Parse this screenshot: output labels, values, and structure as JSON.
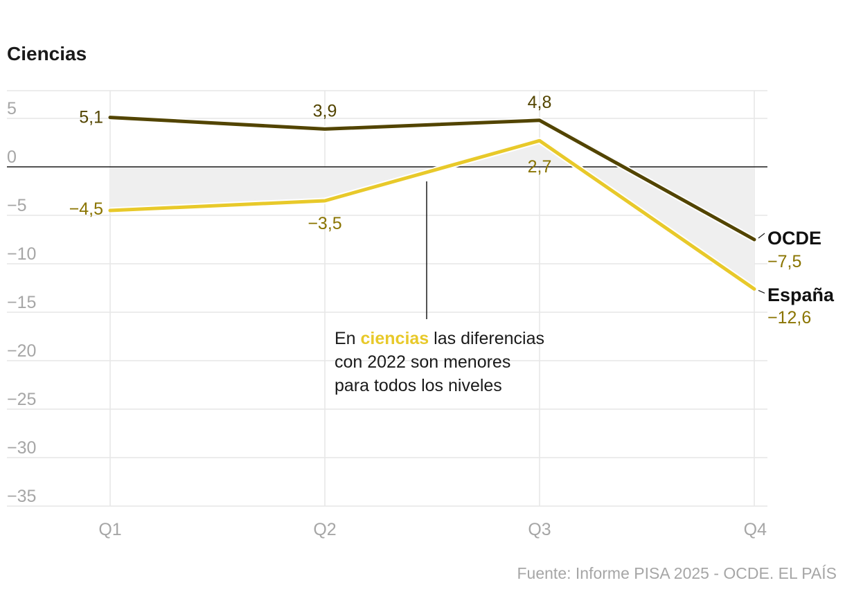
{
  "chart_data": {
    "type": "line",
    "title": "Ciencias",
    "categories": [
      "Q1",
      "Q2",
      "Q3",
      "Q4"
    ],
    "yticks": [
      5,
      0,
      -5,
      -10,
      -15,
      -20,
      -25,
      -30,
      -35
    ],
    "ytick_labels": [
      "5",
      "0",
      "−5",
      "−10",
      "−15",
      "−20",
      "−25",
      "−30",
      "−35"
    ],
    "ylim": [
      -35,
      5
    ],
    "grid": true,
    "series": [
      {
        "name": "OCDE",
        "values": [
          5.1,
          3.9,
          4.8,
          -7.5
        ],
        "labels": [
          "5,1",
          "3,9",
          "4,8",
          "−7,5"
        ],
        "color": "#524400"
      },
      {
        "name": "España",
        "values": [
          -4.5,
          -3.5,
          2.7,
          -12.6
        ],
        "labels": [
          "−4,5",
          "−3,5",
          "2,7",
          "−12,6"
        ],
        "color": "#e8c92a"
      }
    ],
    "label_color": "#8a7400",
    "shade_color": "#efefef",
    "annotation": {
      "before": "En ",
      "highlight": "ciencias",
      "after": " las diferencias",
      "line2": "con 2022 son menores",
      "line3": "para todos los niveles"
    },
    "source": "Fuente: Informe PISA 2025 - OCDE. EL PAÍS"
  }
}
